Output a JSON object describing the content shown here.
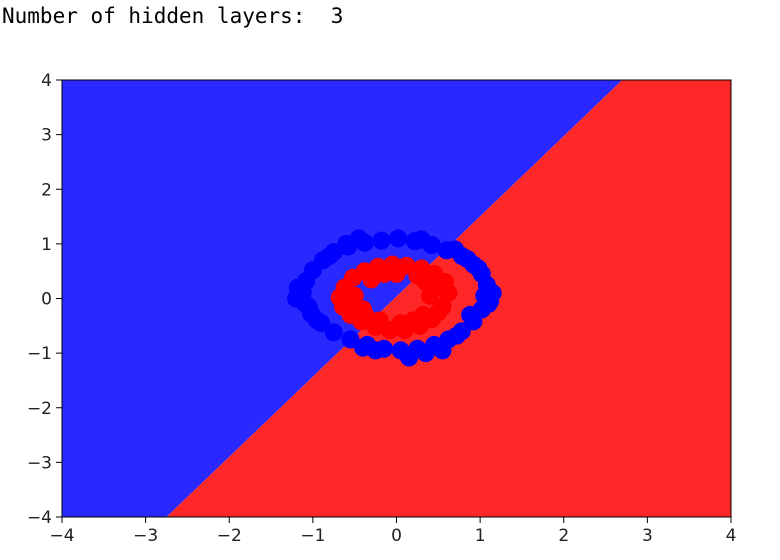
{
  "console": {
    "output_line": "Number of hidden layers:  3"
  },
  "colors": {
    "region_class_0": "#2828ff",
    "region_class_1": "#ff2828",
    "point_class_0": "#0000ff",
    "point_class_1": "#ff0000"
  },
  "chart_data": {
    "type": "scatter",
    "title": "",
    "xlabel": "",
    "ylabel": "",
    "xlim": [
      -4,
      4
    ],
    "ylim": [
      -4,
      4
    ],
    "xticks": [
      -4,
      -3,
      -2,
      -1,
      0,
      1,
      2,
      3,
      4
    ],
    "yticks": [
      -4,
      -3,
      -2,
      -1,
      0,
      1,
      2,
      3,
      4
    ],
    "xtick_labels": [
      "−4",
      "−3",
      "−2",
      "−1",
      "0",
      "1",
      "2",
      "3",
      "4"
    ],
    "ytick_labels": [
      "−4",
      "−3",
      "−2",
      "−1",
      "0",
      "1",
      "2",
      "3",
      "4"
    ],
    "grid": false,
    "legend": "none",
    "decision_regions": [
      {
        "class": 0,
        "color": "#2828ff",
        "polygon": [
          [
            -4,
            -4
          ],
          [
            -2.75,
            -4
          ],
          [
            2.7,
            4
          ],
          [
            -4,
            4
          ]
        ]
      },
      {
        "class": 1,
        "color": "#ff2828",
        "polygon": [
          [
            -2.75,
            -4
          ],
          [
            4,
            -4
          ],
          [
            4,
            4
          ],
          [
            2.7,
            4
          ]
        ]
      },
      {
        "class": 0,
        "color": "#2828ff",
        "polygon": [
          [
            -0.18,
            0
          ],
          [
            -0.05,
            0.2
          ],
          [
            0.05,
            0.15
          ],
          [
            -0.08,
            -0.05
          ]
        ]
      }
    ],
    "series": [
      {
        "class": 1,
        "color": "#ff0000",
        "points": [
          [
            0.55,
            -0.15
          ],
          [
            0.62,
            0.1
          ],
          [
            0.58,
            0.3
          ],
          [
            0.45,
            0.45
          ],
          [
            0.3,
            0.55
          ],
          [
            0.12,
            0.6
          ],
          [
            -0.05,
            0.62
          ],
          [
            -0.22,
            0.58
          ],
          [
            -0.38,
            0.5
          ],
          [
            -0.52,
            0.38
          ],
          [
            -0.62,
            0.2
          ],
          [
            -0.68,
            0.02
          ],
          [
            -0.64,
            -0.15
          ],
          [
            -0.55,
            -0.3
          ],
          [
            -0.42,
            -0.42
          ],
          [
            -0.25,
            -0.52
          ],
          [
            -0.08,
            -0.58
          ],
          [
            0.1,
            -0.58
          ],
          [
            0.28,
            -0.5
          ],
          [
            0.42,
            -0.38
          ],
          [
            0.5,
            -0.25
          ],
          [
            0.35,
            0.3
          ],
          [
            -0.3,
            0.35
          ],
          [
            -0.4,
            -0.2
          ],
          [
            0.2,
            -0.4
          ],
          [
            0.4,
            0.05
          ],
          [
            -0.5,
            0.05
          ],
          [
            0.0,
            0.45
          ],
          [
            0.05,
            -0.45
          ],
          [
            0.25,
            0.42
          ],
          [
            -0.15,
            0.45
          ],
          [
            -0.35,
            -0.35
          ],
          [
            0.32,
            -0.3
          ],
          [
            0.48,
            0.2
          ],
          [
            -0.55,
            -0.1
          ],
          [
            -0.2,
            -0.4
          ]
        ]
      },
      {
        "class": 0,
        "color": "#0000ff",
        "points": [
          [
            1.05,
            0.05
          ],
          [
            1.08,
            0.25
          ],
          [
            1.02,
            0.45
          ],
          [
            0.92,
            0.62
          ],
          [
            0.78,
            0.78
          ],
          [
            0.6,
            0.88
          ],
          [
            0.42,
            0.98
          ],
          [
            0.22,
            1.05
          ],
          [
            0.02,
            1.1
          ],
          [
            -0.18,
            1.06
          ],
          [
            -0.38,
            1.02
          ],
          [
            -0.58,
            0.95
          ],
          [
            -0.75,
            0.85
          ],
          [
            -0.88,
            0.7
          ],
          [
            -1.0,
            0.52
          ],
          [
            -1.08,
            0.32
          ],
          [
            -1.12,
            0.12
          ],
          [
            -1.1,
            -0.08
          ],
          [
            -1.02,
            -0.28
          ],
          [
            -0.9,
            -0.45
          ],
          [
            -0.75,
            -0.62
          ],
          [
            -0.55,
            -0.75
          ],
          [
            -0.35,
            -0.85
          ],
          [
            -0.15,
            -0.92
          ],
          [
            0.05,
            -0.95
          ],
          [
            0.25,
            -0.92
          ],
          [
            0.45,
            -0.85
          ],
          [
            0.62,
            -0.75
          ],
          [
            0.78,
            -0.6
          ],
          [
            0.92,
            -0.42
          ],
          [
            1.02,
            -0.2
          ],
          [
            1.1,
            -0.1
          ],
          [
            0.85,
            0.72
          ],
          [
            -0.8,
            0.78
          ],
          [
            -0.95,
            -0.4
          ],
          [
            0.72,
            -0.68
          ],
          [
            0.55,
            -0.95
          ],
          [
            -0.25,
            -0.95
          ],
          [
            0.15,
            -1.08
          ],
          [
            -1.18,
            0.2
          ],
          [
            1.15,
            0.1
          ],
          [
            0.98,
            0.55
          ],
          [
            -0.6,
            1.0
          ],
          [
            0.3,
            1.08
          ],
          [
            -1.05,
            -0.15
          ],
          [
            0.88,
            -0.3
          ],
          [
            0.7,
            0.9
          ],
          [
            -0.4,
            -0.9
          ],
          [
            0.35,
            -1.0
          ],
          [
            -1.2,
            0.0
          ],
          [
            1.12,
            -0.05
          ],
          [
            -0.45,
            1.1
          ]
        ]
      }
    ]
  }
}
